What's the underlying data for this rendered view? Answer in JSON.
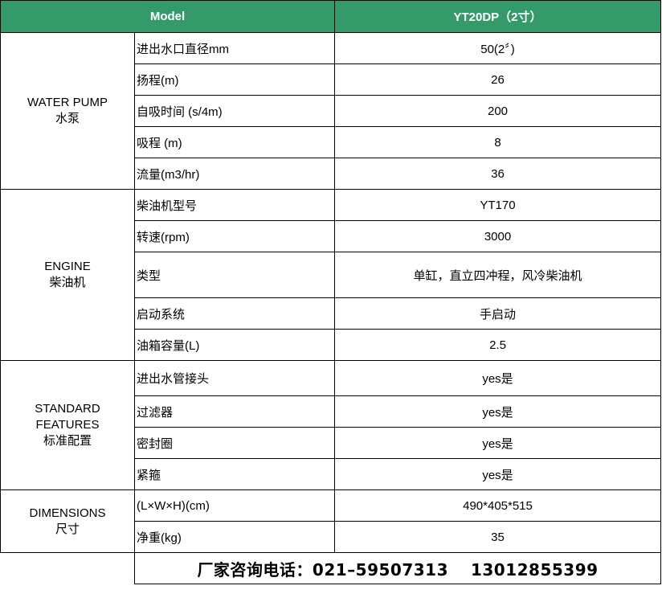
{
  "header": {
    "model_label": "Model",
    "model_value": "YT20DP（2寸）"
  },
  "colors": {
    "header_bg": "#349a6a",
    "header_text": "#ffffff"
  },
  "groups": [
    {
      "title_en": "WATER PUMP",
      "title_cn": "水泵",
      "rows": [
        {
          "label": "进出水口直径mm",
          "value": "50(2〞)"
        },
        {
          "label": "扬程(m)",
          "value": "26"
        },
        {
          "label": "自吸时间 (s/4m)",
          "value": "200"
        },
        {
          "label": "吸程 (m)",
          "value": "8"
        },
        {
          "label": "流量(m3/hr)",
          "value": "36"
        }
      ]
    },
    {
      "title_en": "ENGINE",
      "title_cn": "柴油机",
      "rows": [
        {
          "label": "柴油机型号",
          "value": "YT170"
        },
        {
          "label": "转速(rpm)",
          "value": "3000"
        },
        {
          "label": "类型",
          "value": "单缸，直立四冲程，风冷柴油机"
        },
        {
          "label": "启动系统",
          "value": "手启动"
        },
        {
          "label": "油箱容量(L)",
          "value": "2.5"
        }
      ]
    },
    {
      "title_en": "STANDARD FEATURES",
      "title_cn": "标准配置",
      "rows": [
        {
          "label": "进出水管接头",
          "value": "yes是"
        },
        {
          "label": "过滤器",
          "value": "yes是"
        },
        {
          "label": "密封圈",
          "value": "yes是"
        },
        {
          "label": "紧箍",
          "value": "yes是"
        }
      ]
    },
    {
      "title_en": "DIMENSIONS",
      "title_cn": "尺寸",
      "rows": [
        {
          "label": "(L×W×H)(cm)",
          "value": "490*405*515"
        },
        {
          "label": "净重(kg)",
          "value": "35"
        }
      ]
    }
  ],
  "footer": {
    "contact": "厂家咨询电话：021–59507313　 13012855399"
  }
}
